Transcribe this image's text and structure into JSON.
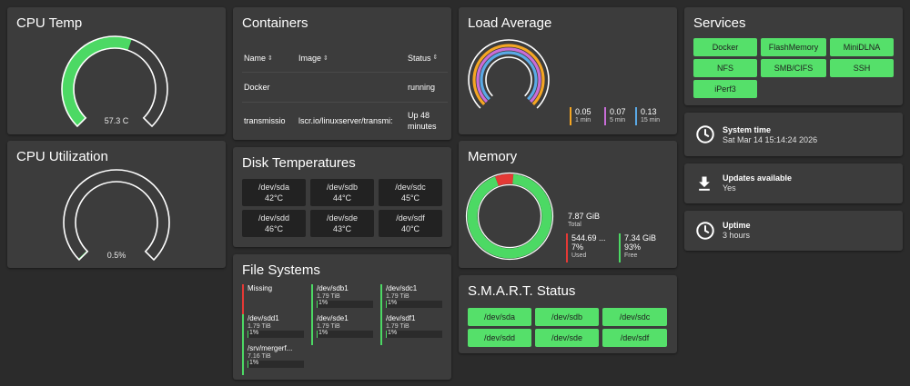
{
  "cpu_temp": {
    "title": "CPU Temp",
    "value_label": "57.3 C",
    "fraction": 0.57
  },
  "cpu_util": {
    "title": "CPU Utilization",
    "value_label": "0.5%",
    "fraction": 0.005
  },
  "containers": {
    "title": "Containers",
    "headers": [
      "Name",
      "Image",
      "Status"
    ],
    "rows": [
      {
        "name": "Docker",
        "image": "",
        "status": "running"
      },
      {
        "name": "transmissio",
        "image": "lscr.io/linuxserver/transmi:",
        "status": "Up 48 minutes"
      }
    ]
  },
  "disk_temps": {
    "title": "Disk Temperatures",
    "disks": [
      {
        "dev": "/dev/sda",
        "temp": "42°C"
      },
      {
        "dev": "/dev/sdb",
        "temp": "44°C"
      },
      {
        "dev": "/dev/sdc",
        "temp": "45°C"
      },
      {
        "dev": "/dev/sdd",
        "temp": "46°C"
      },
      {
        "dev": "/dev/sde",
        "temp": "43°C"
      },
      {
        "dev": "/dev/sdf",
        "temp": "40°C"
      }
    ]
  },
  "file_systems": {
    "title": "File Systems",
    "items": [
      {
        "name": "Missing",
        "size": "",
        "pct": "",
        "status": "missing",
        "used_fraction": 0
      },
      {
        "name": "/dev/sdb1",
        "size": "1.79 TiB",
        "pct": "1%",
        "status": "ok",
        "used_fraction": 0.01
      },
      {
        "name": "/dev/sdc1",
        "size": "1.79 TiB",
        "pct": "1%",
        "status": "ok",
        "used_fraction": 0.01
      },
      {
        "name": "/dev/sdd1",
        "size": "1.79 TiB",
        "pct": "1%",
        "status": "ok",
        "used_fraction": 0.01
      },
      {
        "name": "/dev/sde1",
        "size": "1.79 TiB",
        "pct": "1%",
        "status": "ok",
        "used_fraction": 0.01
      },
      {
        "name": "/dev/sdf1",
        "size": "1.79 TiB",
        "pct": "1%",
        "status": "ok",
        "used_fraction": 0.01
      },
      {
        "name": "/srv/mergerf...",
        "size": "7.16 TiB",
        "pct": "1%",
        "status": "ok",
        "used_fraction": 0.01
      }
    ]
  },
  "load_average": {
    "title": "Load Average",
    "items": [
      {
        "value": "0.05",
        "label": "1 min",
        "color": "#f5a623"
      },
      {
        "value": "0.07",
        "label": "5 min",
        "color": "#c86dd7"
      },
      {
        "value": "0.13",
        "label": "15 min",
        "color": "#5aa9e6"
      }
    ]
  },
  "memory": {
    "title": "Memory",
    "total_value": "7.87 GiB",
    "total_label": "Total",
    "used_value": "544.69 ...",
    "used_pct": "7%",
    "used_label": "Used",
    "used_fraction": 0.07,
    "free_value": "7.34 GiB",
    "free_pct": "93%",
    "free_label": "Free",
    "used_color": "#e53935",
    "free_color": "#4cd964"
  },
  "smart": {
    "title": "S.M.A.R.T. Status",
    "disks": [
      "/dev/sda",
      "/dev/sdb",
      "/dev/sdc",
      "/dev/sdd",
      "/dev/sde",
      "/dev/sdf"
    ]
  },
  "services": {
    "title": "Services",
    "items": [
      "Docker",
      "FlashMemory",
      "MiniDLNA",
      "NFS",
      "SMB/CIFS",
      "SSH",
      "iPerf3"
    ]
  },
  "system_time": {
    "title": "System time",
    "value": "Sat Mar 14 15:14:24 2026",
    "icon": "clock-icon"
  },
  "updates": {
    "title": "Updates available",
    "value": "Yes",
    "icon": "download-icon"
  },
  "uptime": {
    "title": "Uptime",
    "value": "3 hours",
    "icon": "clock-icon"
  },
  "colors": {
    "accent_green": "#4cd964",
    "button_green": "#55e06a",
    "card_bg": "#3c3c3c",
    "page_bg": "#2b2b2b"
  }
}
